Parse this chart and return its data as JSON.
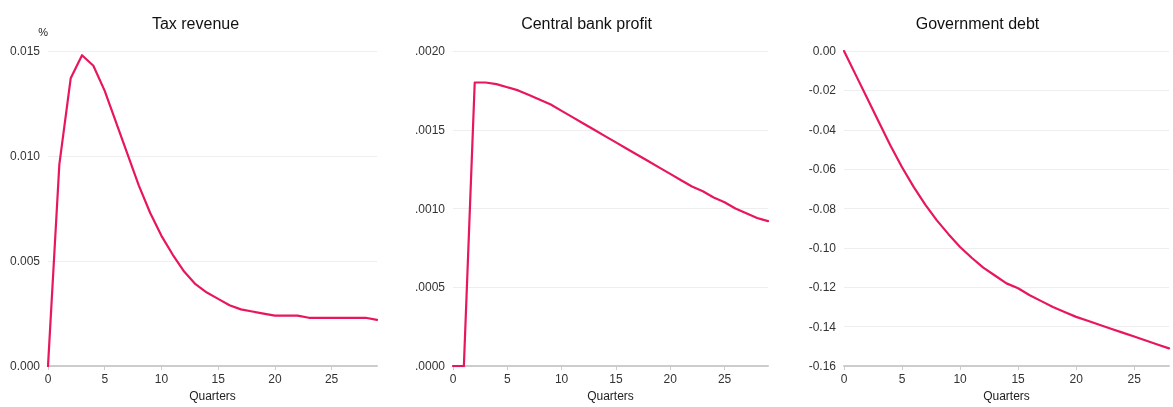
{
  "chart_data": [
    {
      "type": "line",
      "title": "Tax revenue",
      "xlabel": "Quarters",
      "ylabel": "%",
      "x": [
        0,
        1,
        2,
        3,
        4,
        5,
        6,
        7,
        8,
        9,
        10,
        11,
        12,
        13,
        14,
        15,
        16,
        17,
        18,
        19,
        20,
        21,
        22,
        23,
        24,
        25,
        26,
        27,
        28,
        29
      ],
      "series": [
        {
          "color": "#e8175d",
          "values": [
            0,
            0.0096,
            0.0137,
            0.0148,
            0.0143,
            0.0131,
            0.0116,
            0.0101,
            0.0086,
            0.0073,
            0.0062,
            0.0053,
            0.0045,
            0.0039,
            0.0035,
            0.0032,
            0.0029,
            0.0027,
            0.0026,
            0.0025,
            0.0024,
            0.0024,
            0.0024,
            0.0023,
            0.0023,
            0.0023,
            0.0023,
            0.0023,
            0.0023,
            0.0022
          ]
        }
      ],
      "xlim": [
        0,
        29
      ],
      "xticks": [
        0,
        5,
        10,
        15,
        20,
        25
      ],
      "ylim": [
        0,
        0.015
      ],
      "yticks": [
        {
          "value": 0,
          "label": "0.000"
        },
        {
          "value": 0.005,
          "label": "0.005"
        },
        {
          "value": 0.01,
          "label": "0.010"
        },
        {
          "value": 0.015,
          "label": "0.015"
        }
      ],
      "grid": "y",
      "marker": "none",
      "line_style": "solid"
    },
    {
      "type": "line",
      "title": "Central bank profit",
      "xlabel": "Quarters",
      "x": [
        0,
        1,
        2,
        3,
        4,
        5,
        6,
        7,
        8,
        9,
        10,
        11,
        12,
        13,
        14,
        15,
        16,
        17,
        18,
        19,
        20,
        21,
        22,
        23,
        24,
        25,
        26,
        27,
        28,
        29
      ],
      "series": [
        {
          "color": "#e8175d",
          "values": [
            0,
            0,
            0.0018,
            0.0018,
            0.00179,
            0.00177,
            0.00175,
            0.00172,
            0.00169,
            0.00166,
            0.00162,
            0.00158,
            0.00154,
            0.0015,
            0.00146,
            0.00142,
            0.00138,
            0.00134,
            0.0013,
            0.00126,
            0.00122,
            0.00118,
            0.00114,
            0.00111,
            0.00107,
            0.00104,
            0.001,
            0.00097,
            0.00094,
            0.00092
          ]
        }
      ],
      "xlim": [
        0,
        29
      ],
      "xticks": [
        0,
        5,
        10,
        15,
        20,
        25
      ],
      "ylim": [
        0,
        0.002
      ],
      "yticks": [
        {
          "value": 0,
          "label": ".0000"
        },
        {
          "value": 0.0005,
          "label": ".0005"
        },
        {
          "value": 0.001,
          "label": ".0010"
        },
        {
          "value": 0.0015,
          "label": ".0015"
        },
        {
          "value": 0.002,
          "label": ".0020"
        }
      ],
      "grid": "y",
      "marker": "none",
      "line_style": "solid"
    },
    {
      "type": "line",
      "title": "Government debt",
      "xlabel": "Quarters",
      "x": [
        0,
        1,
        2,
        3,
        4,
        5,
        6,
        7,
        8,
        9,
        10,
        11,
        12,
        13,
        14,
        15,
        16,
        17,
        18,
        19,
        20,
        21,
        22,
        23,
        24,
        25,
        26,
        27,
        28
      ],
      "series": [
        {
          "color": "#e8175d",
          "values": [
            0,
            -0.012,
            -0.024,
            -0.036,
            -0.048,
            -0.059,
            -0.069,
            -0.078,
            -0.086,
            -0.093,
            -0.0995,
            -0.105,
            -0.11,
            -0.114,
            -0.118,
            -0.1205,
            -0.124,
            -0.127,
            -0.13,
            -0.1325,
            -0.135,
            -0.137,
            -0.139,
            -0.141,
            -0.143,
            -0.145,
            -0.147,
            -0.149,
            -0.151
          ]
        }
      ],
      "xlim": [
        0,
        28
      ],
      "xticks": [
        0,
        5,
        10,
        15,
        20,
        25
      ],
      "ylim": [
        -0.16,
        0
      ],
      "yticks": [
        {
          "value": -0.16,
          "label": "-0.16"
        },
        {
          "value": -0.14,
          "label": "-0.14"
        },
        {
          "value": -0.12,
          "label": "-0.12"
        },
        {
          "value": -0.1,
          "label": "-0.10"
        },
        {
          "value": -0.08,
          "label": "-0.08"
        },
        {
          "value": -0.06,
          "label": "-0.06"
        },
        {
          "value": -0.04,
          "label": "-0.04"
        },
        {
          "value": -0.02,
          "label": "-0.02"
        },
        {
          "value": 0,
          "label": "0.00"
        }
      ],
      "grid": "y",
      "marker": "none",
      "line_style": "solid"
    }
  ]
}
